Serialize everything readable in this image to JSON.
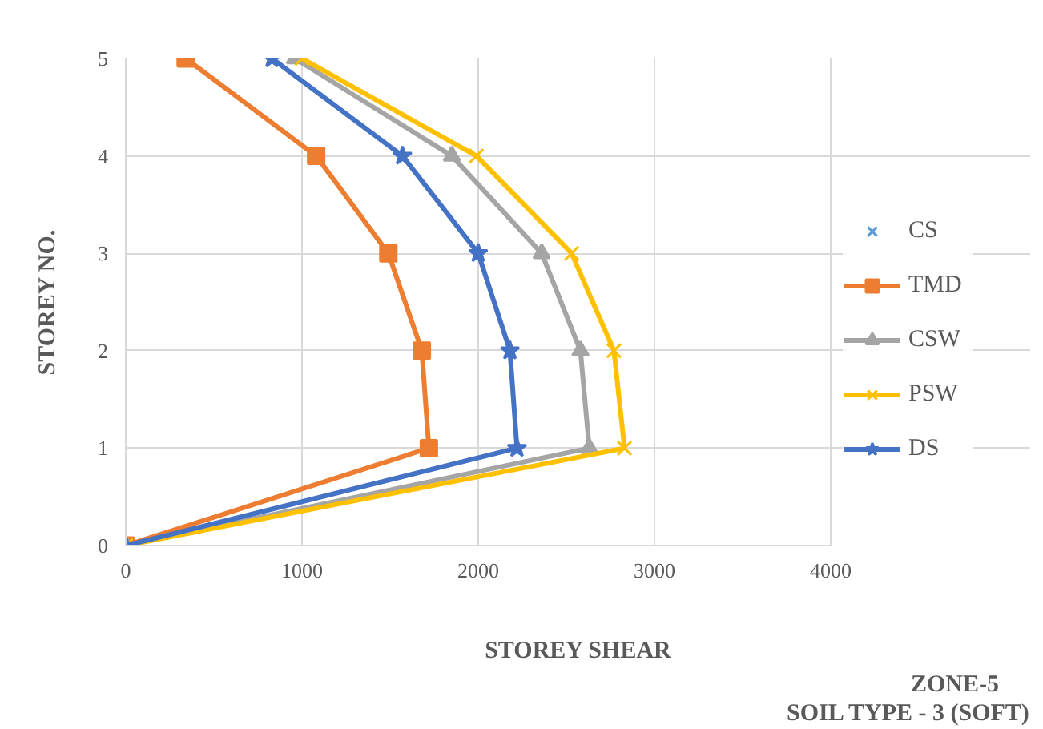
{
  "chart_data": {
    "type": "line",
    "xlabel": "STOREY SHEAR",
    "ylabel": "STOREY NO.",
    "x": [
      0,
      1,
      2,
      3,
      4,
      5
    ],
    "orientation": "horizontal",
    "series": [
      {
        "name": "CS",
        "color": "#5b9bd5",
        "marker": "cross",
        "values": [
          null,
          null,
          null,
          null,
          null,
          null
        ]
      },
      {
        "name": "TMD",
        "color": "#ed7d31",
        "marker": "square",
        "values": [
          0,
          1720,
          1680,
          1490,
          1080,
          340
        ]
      },
      {
        "name": "CSW",
        "color": "#a5a5a5",
        "marker": "triangle",
        "values": [
          0,
          2630,
          2580,
          2360,
          1850,
          960
        ]
      },
      {
        "name": "PSW",
        "color": "#ffc000",
        "marker": "cross",
        "values": [
          0,
          2830,
          2770,
          2530,
          1990,
          1000
        ]
      },
      {
        "name": "DS",
        "color": "#4472c4",
        "marker": "star",
        "values": [
          0,
          2220,
          2180,
          2000,
          1570,
          830
        ]
      }
    ],
    "xlim": [
      0,
      4000
    ],
    "xticks": [
      0,
      1000,
      2000,
      3000,
      4000
    ],
    "ylim": [
      0,
      5
    ],
    "yticks": [
      0,
      1,
      2,
      3,
      4,
      5
    ],
    "grid": true,
    "legend": "right",
    "annotations": [
      "ZONE-5",
      "SOIL TYPE - 3 (SOFT)"
    ]
  }
}
